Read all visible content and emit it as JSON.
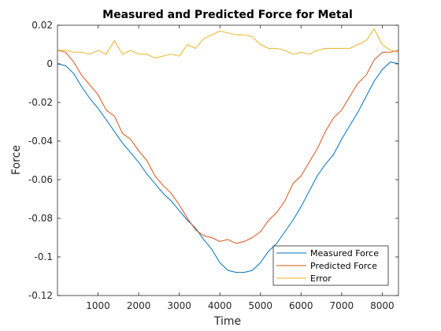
{
  "chart_data": {
    "type": "line",
    "title": "Measured and Predicted Force for Metal",
    "xlabel": "Time",
    "ylabel": "Force",
    "xlim": [
      0,
      8400
    ],
    "ylim": [
      -0.12,
      0.02
    ],
    "xticks": [
      1000,
      2000,
      3000,
      4000,
      5000,
      6000,
      7000,
      8000
    ],
    "xtick_labels": [
      "1000",
      "2000",
      "3000",
      "4000",
      "5000",
      "6000",
      "7000",
      "8000"
    ],
    "yticks": [
      0.02,
      0,
      -0.02,
      -0.04,
      -0.06,
      -0.08,
      -0.1,
      -0.12
    ],
    "ytick_labels": [
      "0.02",
      "0",
      "-0.02",
      "-0.04",
      "-0.06",
      "-0.08",
      "-0.1",
      "-0.12"
    ],
    "grid": false,
    "legend_position": "bottom-right",
    "series": [
      {
        "name": "Measured Force",
        "color": "#0072BD",
        "x": [
          0,
          200,
          400,
          600,
          800,
          1000,
          1200,
          1400,
          1600,
          1800,
          2000,
          2200,
          2400,
          2600,
          2800,
          3000,
          3200,
          3400,
          3600,
          3800,
          4000,
          4200,
          4400,
          4600,
          4800,
          5000,
          5200,
          5400,
          5600,
          5800,
          6000,
          6200,
          6400,
          6600,
          6800,
          7000,
          7200,
          7400,
          7600,
          7800,
          8000,
          8200,
          8400
        ],
        "y": [
          0.0,
          -0.001,
          -0.005,
          -0.012,
          -0.018,
          -0.023,
          -0.029,
          -0.035,
          -0.041,
          -0.046,
          -0.051,
          -0.057,
          -0.062,
          -0.067,
          -0.071,
          -0.076,
          -0.081,
          -0.085,
          -0.091,
          -0.096,
          -0.103,
          -0.107,
          -0.108,
          -0.108,
          -0.107,
          -0.103,
          -0.097,
          -0.093,
          -0.087,
          -0.081,
          -0.074,
          -0.066,
          -0.058,
          -0.052,
          -0.047,
          -0.039,
          -0.032,
          -0.025,
          -0.017,
          -0.009,
          -0.003,
          0.001,
          0.0
        ]
      },
      {
        "name": "Predicted Force",
        "color": "#D95319",
        "x": [
          0,
          200,
          400,
          600,
          800,
          1000,
          1200,
          1400,
          1600,
          1800,
          2000,
          2200,
          2400,
          2600,
          2800,
          3000,
          3200,
          3400,
          3600,
          3800,
          4000,
          4200,
          4400,
          4600,
          4800,
          5000,
          5200,
          5400,
          5600,
          5800,
          6000,
          6200,
          6400,
          6600,
          6800,
          7000,
          7200,
          7400,
          7600,
          7800,
          8000,
          8200,
          8400
        ],
        "y": [
          0.007,
          0.006,
          0.001,
          -0.006,
          -0.011,
          -0.016,
          -0.024,
          -0.027,
          -0.036,
          -0.039,
          -0.045,
          -0.05,
          -0.058,
          -0.063,
          -0.067,
          -0.073,
          -0.08,
          -0.086,
          -0.089,
          -0.09,
          -0.092,
          -0.091,
          -0.093,
          -0.092,
          -0.09,
          -0.087,
          -0.081,
          -0.077,
          -0.071,
          -0.062,
          -0.058,
          -0.051,
          -0.044,
          -0.035,
          -0.028,
          -0.024,
          -0.017,
          -0.01,
          -0.006,
          0.002,
          0.006,
          0.006,
          0.007
        ]
      },
      {
        "name": "Error",
        "color": "#EDB120",
        "x": [
          0,
          200,
          400,
          600,
          800,
          1000,
          1200,
          1400,
          1600,
          1800,
          2000,
          2200,
          2400,
          2600,
          2800,
          3000,
          3200,
          3400,
          3600,
          3800,
          4000,
          4200,
          4400,
          4600,
          4800,
          5000,
          5200,
          5400,
          5600,
          5800,
          6000,
          6200,
          6400,
          6600,
          6800,
          7000,
          7200,
          7400,
          7600,
          7800,
          8000,
          8200,
          8400
        ],
        "y": [
          0.007,
          0.007,
          0.006,
          0.006,
          0.005,
          0.007,
          0.005,
          0.012,
          0.005,
          0.007,
          0.005,
          0.005,
          0.003,
          0.004,
          0.005,
          0.004,
          0.01,
          0.008,
          0.013,
          0.015,
          0.017,
          0.016,
          0.015,
          0.015,
          0.014,
          0.01,
          0.008,
          0.008,
          0.007,
          0.005,
          0.006,
          0.005,
          0.007,
          0.008,
          0.008,
          0.008,
          0.008,
          0.01,
          0.012,
          0.018,
          0.01,
          0.007,
          0.006
        ]
      }
    ]
  }
}
